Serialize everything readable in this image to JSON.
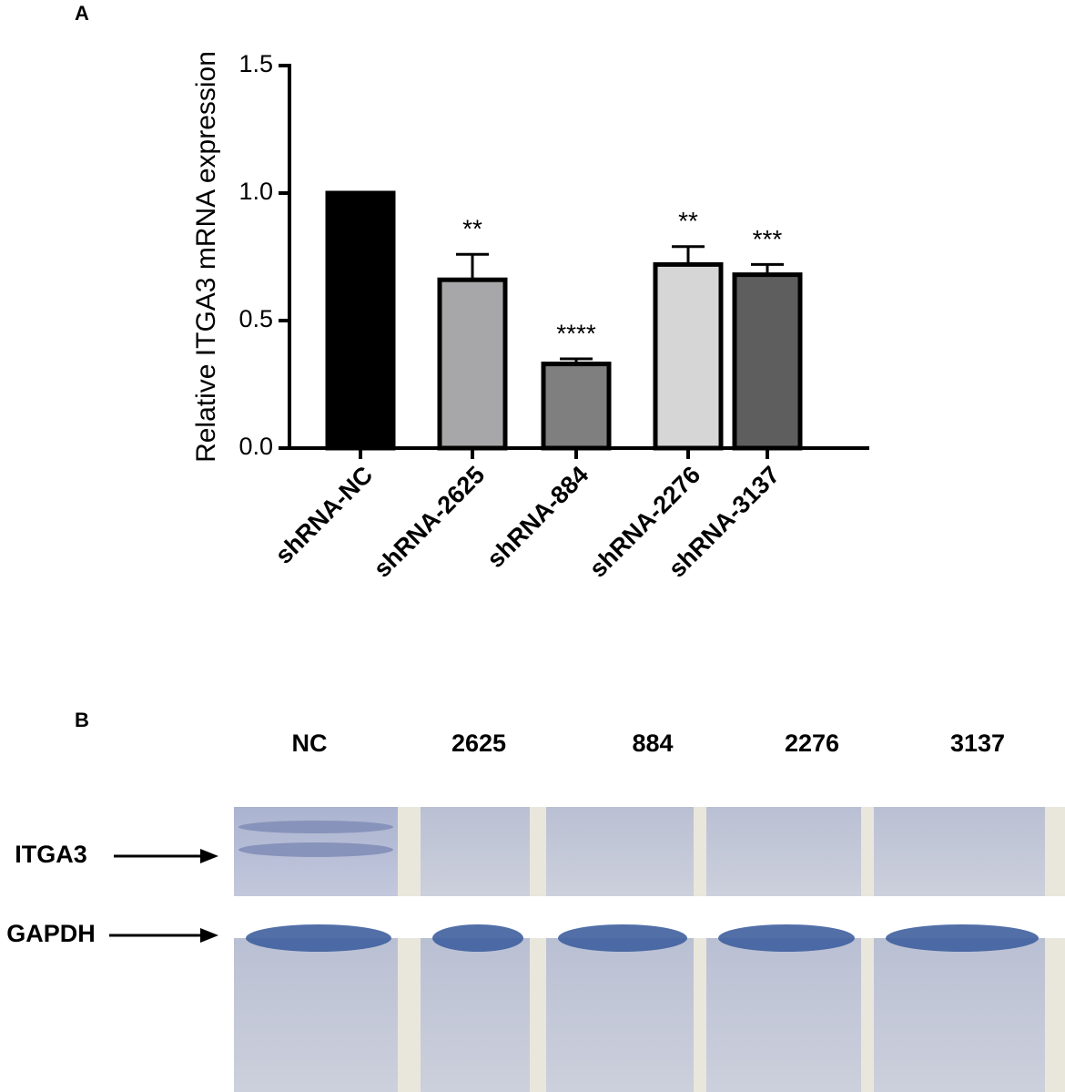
{
  "chart_data": {
    "type": "bar",
    "panel_label": "A",
    "ylabel": "Relative ITGA3 mRNA expression",
    "categories": [
      "shRNA-NC",
      "shRNA-2625",
      "shRNA-884",
      "shRNA-2276",
      "shRNA-3137"
    ],
    "values": [
      1.0,
      0.66,
      0.33,
      0.72,
      0.68
    ],
    "errors": [
      0,
      0.1,
      0.02,
      0.07,
      0.04
    ],
    "annotations": [
      null,
      "**",
      "****",
      "**",
      "***"
    ],
    "colors": [
      "#000000",
      "#a7a7a9",
      "#7f7f7f",
      "#d6d6d6",
      "#5e5e5e"
    ],
    "ylim": [
      0,
      1.5
    ],
    "yticks": [
      {
        "value": 0,
        "label": "0.0"
      },
      0.5,
      {
        "value": 1,
        "label": "1.0"
      },
      1.5
    ],
    "grid": false
  },
  "blot": {
    "panel_label": "B",
    "lanes": [
      "NC",
      "2625",
      "884",
      "2276",
      "3137"
    ],
    "bands": [
      "ITGA3",
      "GAPDH"
    ]
  }
}
